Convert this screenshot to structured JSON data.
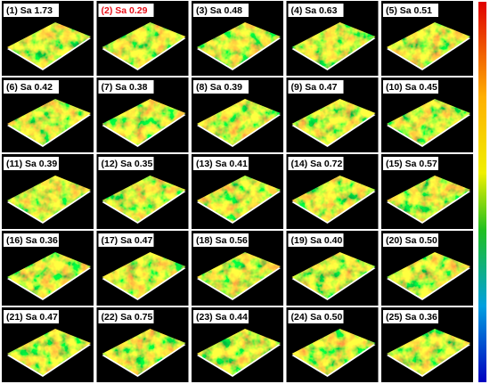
{
  "panels": [
    {
      "label": "(1) Sa 1.73"
    },
    {
      "label": "(2) Sa 0.29",
      "color": "#e8101a"
    },
    {
      "label": "(3) Sa 0.48"
    },
    {
      "label": "(4) Sa 0.63"
    },
    {
      "label": "(5) Sa 0.51"
    },
    {
      "label": "(6) Sa 0.42"
    },
    {
      "label": "(7) Sa 0.38"
    },
    {
      "label": "(8) Sa 0.39"
    },
    {
      "label": "(9) Sa 0.47"
    },
    {
      "label": "(10) Sa 0.45"
    },
    {
      "label": "(11) Sa 0.39"
    },
    {
      "label": "(12) Sa 0.35"
    },
    {
      "label": "(13) Sa 0.41"
    },
    {
      "label": "(14) Sa 0.72"
    },
    {
      "label": "(15) Sa 0.57"
    },
    {
      "label": "(16) Sa 0.36"
    },
    {
      "label": "(17) Sa 0.47"
    },
    {
      "label": "(18) Sa 0.56"
    },
    {
      "label": "(19) Sa 0.40"
    },
    {
      "label": "(20) Sa 0.50"
    },
    {
      "label": "(21) Sa 0.47"
    },
    {
      "label": "(22) Sa 0.75"
    },
    {
      "label": "(23) Sa 0.44"
    },
    {
      "label": "(24) Sa 0.50"
    },
    {
      "label": "(25) Sa 0.36"
    }
  ]
}
